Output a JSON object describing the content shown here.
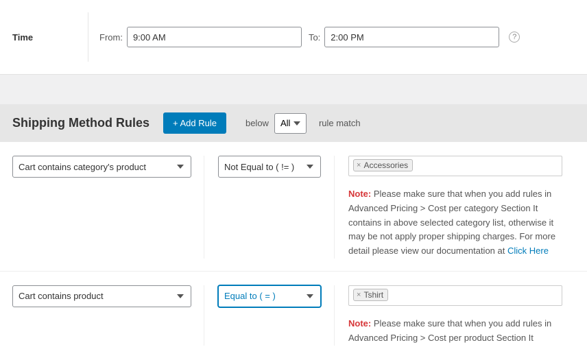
{
  "time": {
    "label": "Time",
    "from_label": "From:",
    "from_value": "9:00 AM",
    "to_label": "To:",
    "to_value": "2:00 PM"
  },
  "rules_header": {
    "title": "Shipping Method Rules",
    "add_button": "+ Add Rule",
    "before_text": "below",
    "match_options": [
      "All"
    ],
    "match_selected": "All",
    "after_text": "rule match"
  },
  "rules": [
    {
      "condition": "Cart contains category's product",
      "operator": "Not Equal to ( != )",
      "operator_active": false,
      "tag": "Accessories",
      "note_label": "Note:",
      "note_text": " Please make sure that when you add rules in Advanced Pricing > Cost per category Section It contains in above selected category list, otherwise it may be not apply proper shipping charges. For more detail please view our documentation at ",
      "link_text": "Click Here"
    },
    {
      "condition": "Cart contains product",
      "operator": "Equal to ( = )",
      "operator_active": true,
      "tag": "Tshirt",
      "note_label": "Note:",
      "note_text": " Please make sure that when you add rules in Advanced Pricing > Cost per product Section It",
      "link_text": ""
    }
  ],
  "colors": {
    "primary": "#007cba",
    "danger": "#d63638",
    "header_bg": "#e6e6e6",
    "spacer_bg": "#f0f0f1"
  }
}
